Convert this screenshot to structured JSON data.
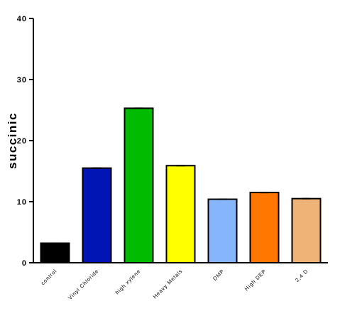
{
  "chart_data": {
    "type": "bar",
    "title": "",
    "xlabel": "",
    "ylabel": "succinic",
    "ylim": [
      0,
      40
    ],
    "yticks": [
      0,
      10,
      20,
      30,
      40
    ],
    "grid": false,
    "legend": "none",
    "categories": [
      "control",
      "Vinyl Chloride",
      "high xylene",
      "Heavy Metals",
      "DMP",
      "High DEP",
      "2,4 D"
    ],
    "values": [
      3.2,
      15.5,
      25.3,
      15.9,
      10.4,
      11.5,
      10.5
    ],
    "colors": [
      "#000000",
      "#0015b3",
      "#00bb00",
      "#ffff00",
      "#86b5fb",
      "#ff7700",
      "#f0b377"
    ]
  }
}
